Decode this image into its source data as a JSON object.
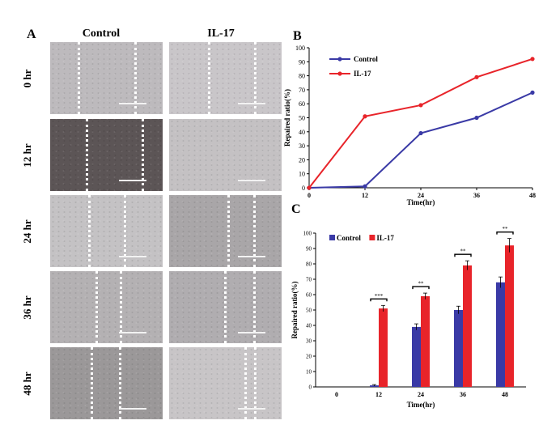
{
  "panel_a": {
    "letter": "A",
    "columns": [
      "Control",
      "IL-17"
    ],
    "rows": [
      "0 hr",
      "12 hr",
      "24 hr",
      "36 hr",
      "48 hr"
    ],
    "tones": [
      [
        "#bdbabd",
        "#c9c6c9"
      ],
      [
        "#5c5556",
        "#c4c1c3"
      ],
      [
        "#c4c2c4",
        "#a9a6a8"
      ],
      [
        "#b4b1b3",
        "#b0adb0"
      ],
      [
        "#9b9899",
        "#c8c5c7"
      ]
    ]
  },
  "panel_b": {
    "letter": "B"
  },
  "panel_c": {
    "letter": "C"
  },
  "chart_data": [
    {
      "type": "line",
      "panel": "B",
      "title": "",
      "xlabel": "Time(hr)",
      "ylabel": "Repaired ratio(%)",
      "x": [
        0,
        12,
        24,
        36,
        48
      ],
      "xticks": [
        0,
        12,
        24,
        36,
        48
      ],
      "ylim": [
        0,
        100
      ],
      "yticks": [
        0,
        10,
        20,
        30,
        40,
        50,
        60,
        70,
        80,
        90,
        100
      ],
      "legend_position": "top-left",
      "grid": false,
      "series": [
        {
          "name": "Control",
          "color": "#3a3aa6",
          "values": [
            0,
            1,
            39,
            50,
            68
          ]
        },
        {
          "name": "IL-17",
          "color": "#e8242a",
          "values": [
            0,
            51,
            59,
            79,
            92
          ]
        }
      ]
    },
    {
      "type": "bar",
      "panel": "C",
      "title": "",
      "xlabel": "Time(hr)",
      "ylabel": "Repaired ratio(%)",
      "categories": [
        "0",
        "12",
        "24",
        "36",
        "48"
      ],
      "ylim": [
        0,
        100
      ],
      "yticks": [
        0,
        10,
        20,
        30,
        40,
        50,
        60,
        70,
        80,
        90,
        100
      ],
      "legend_position": "top-left",
      "grid": false,
      "series": [
        {
          "name": "Control",
          "color": "#3a3aa6",
          "values": [
            0,
            1,
            39,
            50,
            68
          ],
          "errors": [
            0,
            0.5,
            2,
            2.5,
            3.5
          ]
        },
        {
          "name": "IL-17",
          "color": "#e8242a",
          "values": [
            0,
            51,
            59,
            79,
            92
          ],
          "errors": [
            0,
            2,
            2,
            3,
            4.5
          ]
        }
      ],
      "significance": [
        {
          "category": "12",
          "label": "***"
        },
        {
          "category": "24",
          "label": "**"
        },
        {
          "category": "36",
          "label": "**"
        },
        {
          "category": "48",
          "label": "**"
        }
      ]
    }
  ]
}
